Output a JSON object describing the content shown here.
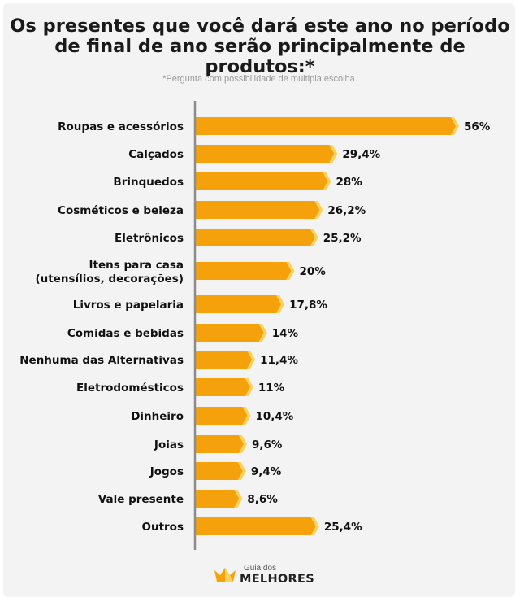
{
  "title_line1": "Os presentes que você dará este ano no período",
  "title_line2": "de final de ano serão principalmente de produtos:*",
  "subtitle": "*Pergunta com possibilidade de múltipla escolha.",
  "footer": {
    "brand_small": "Guia dos",
    "brand_big": "MELHORES",
    "logo_icon": "crown-icon"
  },
  "colors": {
    "bar": "#f5a10c",
    "bar_tip": "#fcd25a",
    "axis": "#8c8c8c",
    "background": "#f3f3f3"
  },
  "chart_data": {
    "type": "bar",
    "orientation": "horizontal",
    "title": "Os presentes que você dará este ano no período de final de ano serão principalmente de produtos:*",
    "categories": [
      [
        "Roupas e acessórios"
      ],
      [
        "Calçados"
      ],
      [
        "Brinquedos"
      ],
      [
        "Cosméticos e beleza"
      ],
      [
        "Eletrônicos"
      ],
      [
        "Itens para casa",
        "(utensílios, decorações)"
      ],
      [
        "Livros e papelaria"
      ],
      [
        "Comidas e bebidas"
      ],
      [
        "Nenhuma das Alternativas"
      ],
      [
        "Eletrodomésticos"
      ],
      [
        "Dinheiro"
      ],
      [
        "Joias"
      ],
      [
        "Jogos"
      ],
      [
        "Vale presente"
      ],
      [
        "Outros"
      ]
    ],
    "values": [
      56,
      29.4,
      28,
      26.2,
      25.2,
      20,
      17.8,
      14,
      11.4,
      11,
      10.4,
      9.6,
      9.4,
      8.6,
      25.4
    ],
    "value_labels": [
      "56%",
      "29,4%",
      "28%",
      "26,2%",
      "25,2%",
      "20%",
      "17,8%",
      "14%",
      "11,4%",
      "11%",
      "10,4%",
      "9,6%",
      "9,4%",
      "8,6%",
      "25,4%"
    ],
    "xlim": [
      0,
      56
    ],
    "grid": false,
    "legend": false
  }
}
